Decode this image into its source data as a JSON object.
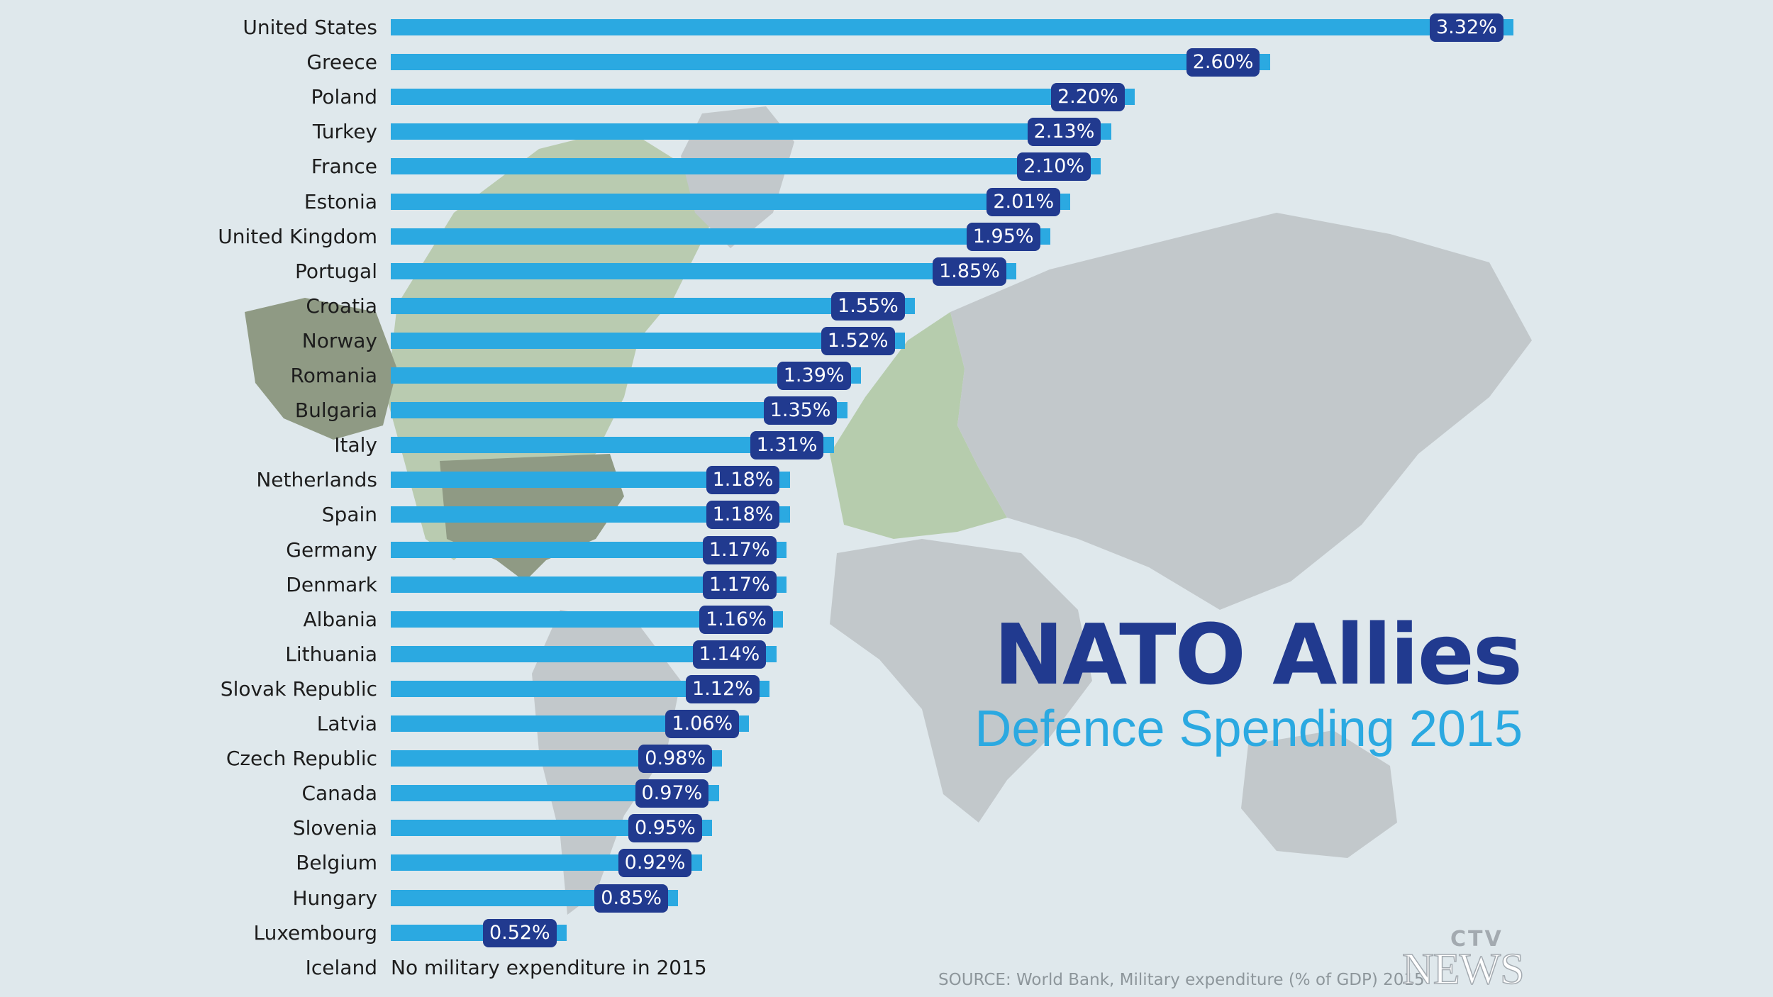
{
  "chart_data": {
    "type": "bar",
    "orientation": "horizontal",
    "title": "NATO Allies",
    "subtitle": "Defence Spending 2015",
    "categories": [
      "United States",
      "Greece",
      "Poland",
      "Turkey",
      "France",
      "Estonia",
      "United Kingdom",
      "Portugal",
      "Croatia",
      "Norway",
      "Romania",
      "Bulgaria",
      "Italy",
      "Netherlands",
      "Spain",
      "Germany",
      "Denmark",
      "Albania",
      "Lithuania",
      "Slovak Republic",
      "Latvia",
      "Czech Republic",
      "Canada",
      "Slovenia",
      "Belgium",
      "Hungary",
      "Luxembourg",
      "Iceland"
    ],
    "values": [
      3.32,
      2.6,
      2.2,
      2.13,
      2.1,
      2.01,
      1.95,
      1.85,
      1.55,
      1.52,
      1.39,
      1.35,
      1.31,
      1.18,
      1.18,
      1.17,
      1.17,
      1.16,
      1.14,
      1.12,
      1.06,
      0.98,
      0.97,
      0.95,
      0.92,
      0.85,
      0.52,
      null
    ],
    "value_labels": [
      "3.32%",
      "2.60%",
      "2.20%",
      "2.13%",
      "2.10%",
      "2.01%",
      "1.95%",
      "1.85%",
      "1.55%",
      "1.52%",
      "1.39%",
      "1.35%",
      "1.31%",
      "1.18%",
      "1.18%",
      "1.17%",
      "1.17%",
      "1.16%",
      "1.14%",
      "1.12%",
      "1.06%",
      "0.98%",
      "0.97%",
      "0.95%",
      "0.92%",
      "0.85%",
      "0.52%",
      ""
    ],
    "notes": {
      "Iceland": "No military expenditure in 2015"
    },
    "xlabel": "",
    "ylabel": "",
    "xlim": [
      0,
      3.32
    ],
    "units": "% of GDP"
  },
  "source": "SOURCE: World Bank, Military expenditure (% of GDP) 2015",
  "logo": {
    "top": "CTV",
    "bottom": "NEWS"
  },
  "colors": {
    "background": "#dfe8ec",
    "bar": "#2ba9e1",
    "badge": "#213a8f",
    "title": "#213a8f",
    "subtitle": "#2ba9e1",
    "land": "#c2c8cb",
    "nato_land": "#b6ccad"
  }
}
